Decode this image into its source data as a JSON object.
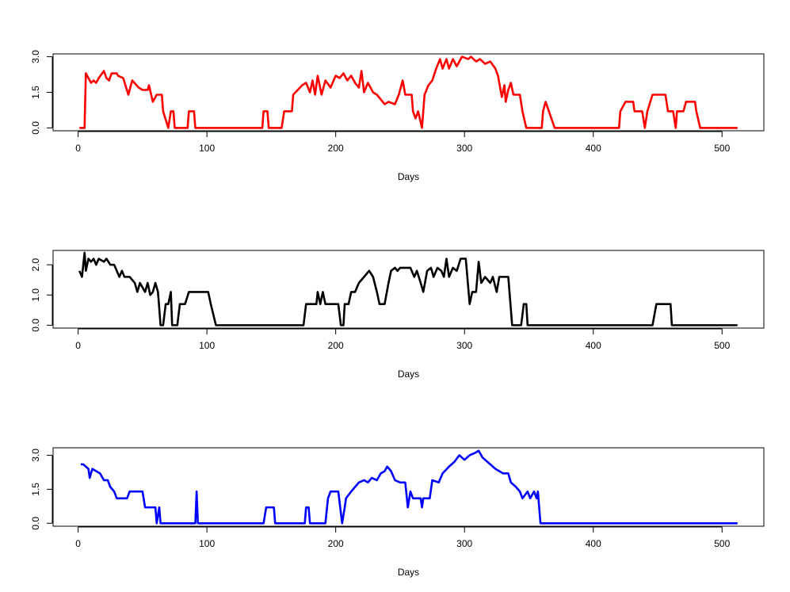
{
  "chart_data": [
    {
      "type": "line",
      "xlabel": "Days",
      "color": "#ff0000",
      "x": [
        1,
        5,
        6,
        10,
        12,
        14,
        16,
        20,
        22,
        24,
        26,
        30,
        31,
        35,
        39,
        42,
        47,
        50,
        54,
        55,
        58,
        61,
        65,
        66,
        70,
        72,
        74,
        75,
        85,
        86,
        90,
        91,
        143,
        144,
        147,
        148,
        158,
        160,
        166,
        167,
        174,
        177,
        180,
        182,
        184,
        186,
        189,
        192,
        196,
        200,
        203,
        206,
        209,
        212,
        215,
        218,
        220,
        222,
        225,
        229,
        232,
        238,
        241,
        246,
        249,
        252,
        254,
        259,
        260,
        262,
        264,
        267,
        269,
        272,
        275,
        278,
        281,
        283,
        286,
        288,
        291,
        294,
        298,
        303,
        305,
        309,
        312,
        316,
        320,
        324,
        326,
        329,
        331,
        332,
        334,
        336,
        338,
        343,
        345,
        348,
        360,
        361,
        363,
        370,
        420,
        421,
        425,
        431,
        432,
        438,
        440,
        442,
        446,
        456,
        458,
        462,
        464,
        465,
        470,
        472,
        479,
        480,
        483,
        512
      ],
      "values": [
        0,
        0,
        2.3,
        1.9,
        2.0,
        1.9,
        2.1,
        2.4,
        2.1,
        2.0,
        2.3,
        2.3,
        2.2,
        2.1,
        1.4,
        2.0,
        1.7,
        1.6,
        1.6,
        1.8,
        1.1,
        1.4,
        1.4,
        0.7,
        0,
        0.7,
        0.7,
        0,
        0,
        0.7,
        0.7,
        0,
        0,
        0.7,
        0.7,
        0,
        0,
        0.7,
        0.7,
        1.4,
        1.8,
        1.9,
        1.5,
        2.0,
        1.4,
        2.2,
        1.4,
        2.0,
        1.7,
        2.2,
        2.1,
        2.3,
        2.0,
        2.2,
        1.9,
        1.7,
        2.4,
        1.5,
        1.9,
        1.5,
        1.4,
        1.0,
        1.1,
        1.0,
        1.4,
        2.0,
        1.4,
        1.4,
        0.7,
        0.4,
        0.7,
        0,
        1.4,
        1.8,
        2.0,
        2.5,
        2.9,
        2.5,
        2.9,
        2.5,
        2.9,
        2.6,
        3.0,
        2.9,
        3.0,
        2.8,
        2.9,
        2.7,
        2.8,
        2.5,
        2.2,
        1.3,
        1.8,
        1.1,
        1.6,
        1.9,
        1.4,
        1.4,
        0.7,
        0,
        0,
        0.7,
        1.1,
        0,
        0,
        0.7,
        1.1,
        1.1,
        0.7,
        0.7,
        0,
        0.7,
        1.4,
        1.4,
        0.7,
        0.7,
        0,
        0.7,
        0.7,
        1.1,
        1.1,
        0.7,
        0,
        0
      ],
      "xlim": [
        -19.44,
        532.44
      ],
      "ylim": [
        -0.12,
        3.12
      ],
      "xticks": [
        0,
        100,
        200,
        300,
        400,
        500
      ],
      "yticks": [
        {
          "value": 0,
          "label": "0.0"
        },
        {
          "value": 1.5,
          "label": "1.5"
        },
        {
          "value": 3,
          "label": "3.0"
        }
      ]
    },
    {
      "type": "line",
      "xlabel": "Days",
      "color": "#000000",
      "x": [
        1,
        3,
        5,
        6,
        8,
        10,
        12,
        14,
        16,
        20,
        22,
        25,
        28,
        30,
        32,
        34,
        36,
        40,
        44,
        46,
        48,
        52,
        54,
        56,
        58,
        60,
        62,
        64,
        66,
        68,
        70,
        72,
        73,
        77,
        79,
        83,
        86,
        101,
        103,
        107,
        175,
        177,
        185,
        186,
        188,
        190,
        192,
        202,
        204,
        206,
        207,
        210,
        212,
        215,
        218,
        222,
        226,
        229,
        232,
        234,
        238,
        241,
        243,
        246,
        248,
        250,
        258,
        261,
        263,
        266,
        268,
        271,
        274,
        276,
        279,
        282,
        284,
        286,
        288,
        291,
        294,
        297,
        301,
        304,
        306,
        309,
        311,
        313,
        316,
        320,
        322,
        325,
        327,
        334,
        337,
        344,
        346,
        348,
        349,
        446,
        449,
        460,
        461,
        512
      ],
      "values": [
        1.8,
        1.6,
        2.4,
        1.8,
        2.2,
        2.1,
        2.2,
        2.0,
        2.2,
        2.1,
        2.2,
        2.0,
        2.0,
        1.8,
        1.6,
        1.8,
        1.6,
        1.6,
        1.4,
        1.1,
        1.4,
        1.1,
        1.4,
        1.0,
        1.1,
        1.4,
        1.1,
        0,
        0,
        0.7,
        0.7,
        1.1,
        0,
        0,
        0.7,
        0.7,
        1.1,
        1.1,
        0.7,
        0,
        0,
        0.7,
        0.7,
        1.1,
        0.7,
        1.1,
        0.7,
        0.7,
        0,
        0,
        0.7,
        0.7,
        1.1,
        1.1,
        1.4,
        1.6,
        1.8,
        1.6,
        1.1,
        0.7,
        0.7,
        1.4,
        1.8,
        1.9,
        1.8,
        1.9,
        1.9,
        1.6,
        1.8,
        1.4,
        1.1,
        1.8,
        1.9,
        1.6,
        1.9,
        1.8,
        1.6,
        2.2,
        1.6,
        1.9,
        1.8,
        2.2,
        2.2,
        0.7,
        1.1,
        1.1,
        2.1,
        1.4,
        1.6,
        1.4,
        1.6,
        1.1,
        1.6,
        1.6,
        0,
        0,
        0.7,
        0.7,
        0,
        0,
        0.7,
        0.7,
        0,
        0
      ],
      "xlim": [
        -19.44,
        532.44
      ],
      "ylim": [
        -0.095,
        2.475
      ],
      "xticks": [
        0,
        100,
        200,
        300,
        400,
        500
      ],
      "yticks": [
        {
          "value": 0,
          "label": "0.0"
        },
        {
          "value": 1,
          "label": "1.0"
        },
        {
          "value": 2,
          "label": "2.0"
        }
      ]
    },
    {
      "type": "line",
      "xlabel": "Days",
      "color": "#0000ff",
      "x": [
        2,
        4,
        6,
        8,
        9,
        11,
        14,
        17,
        20,
        23,
        25,
        28,
        30,
        38,
        40,
        50,
        52,
        60,
        61,
        63,
        64,
        91,
        92,
        93,
        144,
        146,
        152,
        153,
        176,
        177,
        179,
        180,
        192,
        194,
        196,
        202,
        205,
        207,
        208,
        212,
        215,
        218,
        222,
        225,
        228,
        232,
        235,
        238,
        240,
        243,
        246,
        250,
        254,
        256,
        258,
        260,
        266,
        267,
        268,
        273,
        275,
        280,
        283,
        288,
        292,
        296,
        300,
        304,
        308,
        311,
        314,
        318,
        324,
        330,
        334,
        336,
        340,
        343,
        345,
        349,
        351,
        354,
        356,
        357,
        359,
        512
      ],
      "values": [
        2.6,
        2.6,
        2.5,
        2.4,
        2.0,
        2.4,
        2.3,
        2.2,
        1.9,
        1.9,
        1.6,
        1.4,
        1.1,
        1.1,
        1.4,
        1.4,
        0.7,
        0.7,
        0,
        0.7,
        0,
        0,
        1.4,
        0,
        0,
        0.7,
        0.7,
        0,
        0,
        0.7,
        0.7,
        0,
        0,
        1.1,
        1.4,
        1.4,
        0,
        0.7,
        1.1,
        1.4,
        1.6,
        1.8,
        1.9,
        1.8,
        2.0,
        1.9,
        2.2,
        2.3,
        2.5,
        2.3,
        1.9,
        1.8,
        1.8,
        0.7,
        1.4,
        1.1,
        1.1,
        0.7,
        1.1,
        1.1,
        1.9,
        1.8,
        2.2,
        2.5,
        2.7,
        3.0,
        2.8,
        3.0,
        3.1,
        3.2,
        2.9,
        2.7,
        2.4,
        2.2,
        2.2,
        1.8,
        1.6,
        1.4,
        1.1,
        1.4,
        1.1,
        1.4,
        1.1,
        1.4,
        0,
        0
      ],
      "xlim": [
        -19.44,
        532.44
      ],
      "ylim": [
        -0.13,
        3.33
      ],
      "xticks": [
        0,
        100,
        200,
        300,
        400,
        500
      ],
      "yticks": [
        {
          "value": 0,
          "label": "0.0"
        },
        {
          "value": 1.5,
          "label": "1.5"
        },
        {
          "value": 3,
          "label": "3.0"
        }
      ]
    }
  ]
}
